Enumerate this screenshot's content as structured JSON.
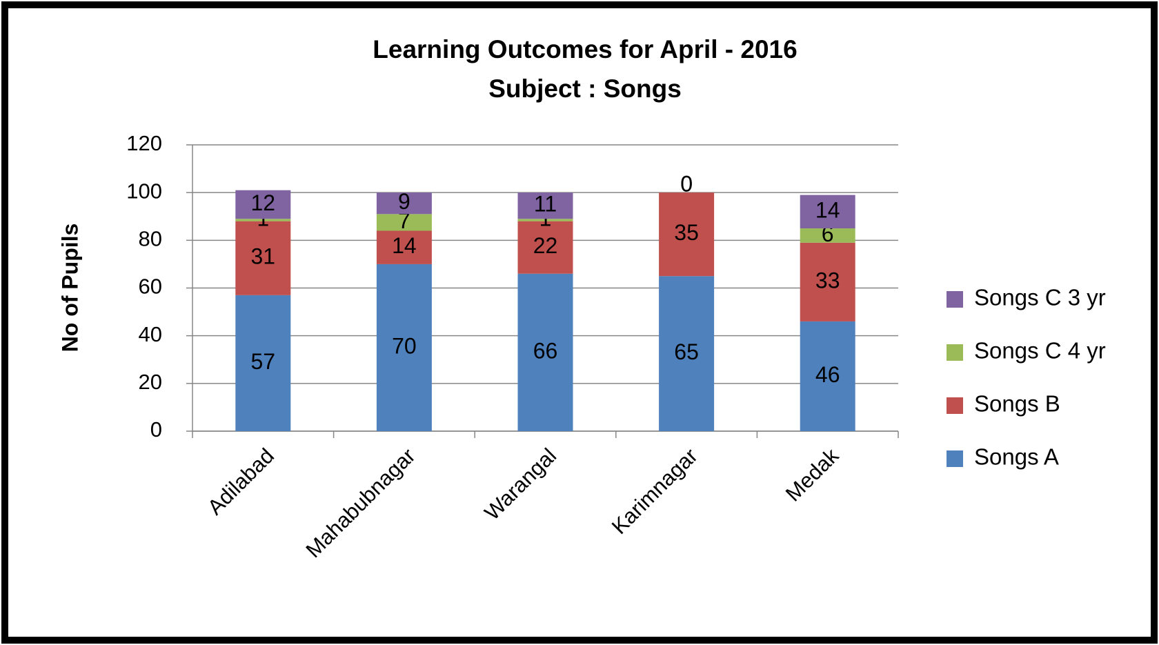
{
  "chart_data": {
    "type": "stacked-bar",
    "title": "Learning Outcomes for April - 2016",
    "subtitle": "Subject : Songs",
    "y_label": "No of Pupils",
    "categories": [
      "Adilabad",
      "Mahabubnagar",
      "Warangal",
      "Karimnagar",
      "Medak"
    ],
    "series": [
      {
        "name": "Songs A",
        "color": "#4f81bd",
        "values": [
          57,
          70,
          66,
          65,
          46
        ]
      },
      {
        "name": "Songs B",
        "color": "#c0504d",
        "values": [
          31,
          14,
          22,
          35,
          33
        ]
      },
      {
        "name": "Songs C 4 yr",
        "color": "#9bbb59",
        "values": [
          1,
          7,
          1,
          0,
          6
        ]
      },
      {
        "name": "Songs C 3 yr",
        "color": "#8064a2",
        "values": [
          12,
          9,
          11,
          0,
          14
        ]
      }
    ],
    "ylim": [
      0,
      120
    ],
    "yticks": [
      0,
      20,
      40,
      60,
      80,
      100,
      120
    ],
    "grid": true,
    "legend": "right"
  }
}
